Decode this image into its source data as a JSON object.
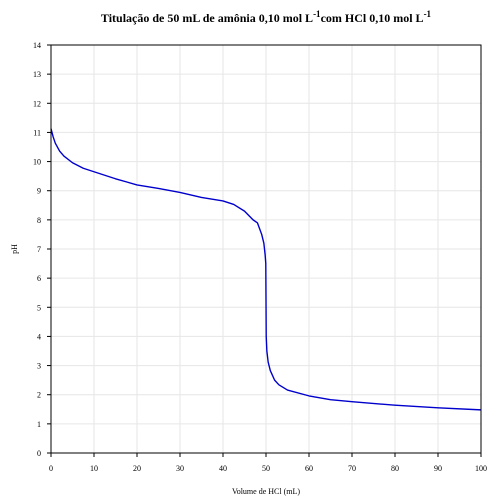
{
  "chart_data": {
    "type": "line",
    "title": {
      "main": "Titulação de 50 mL de amônia 0,10 mol L",
      "sup1": "-1",
      "middle": "com HCl 0,10 mol L",
      "sup2": "-1"
    },
    "xlabel": "Volume de HCl (mL)",
    "ylabel": "pH",
    "xlim": [
      0,
      100
    ],
    "ylim": [
      0,
      14
    ],
    "xticks": [
      "0",
      "10",
      "20",
      "30",
      "40",
      "50",
      "60",
      "70",
      "80",
      "90",
      "100"
    ],
    "yticks": [
      "0",
      "1",
      "2",
      "3",
      "4",
      "5",
      "6",
      "7",
      "8",
      "9",
      "10",
      "11",
      "12",
      "13",
      "14"
    ],
    "grid": true,
    "line_color": "#0000cc",
    "series": [
      {
        "x": [
          0,
          0.5,
          1,
          2,
          3,
          5,
          7.5,
          10,
          15,
          20,
          25,
          30,
          35,
          40,
          42.5,
          45,
          47,
          48,
          49,
          49.5,
          49.8,
          49.95,
          50,
          50.05,
          50.2,
          50.5,
          51,
          52,
          53,
          55,
          60,
          65,
          70,
          80,
          90,
          100
        ],
        "y": [
          11.13,
          10.85,
          10.63,
          10.36,
          10.19,
          9.96,
          9.77,
          9.65,
          9.41,
          9.2,
          9.08,
          8.94,
          8.77,
          8.65,
          8.53,
          8.3,
          8.0,
          7.9,
          7.5,
          7.2,
          6.8,
          6.5,
          5.28,
          4.0,
          3.5,
          3.12,
          2.83,
          2.5,
          2.34,
          2.16,
          1.96,
          1.83,
          1.76,
          1.64,
          1.55,
          1.48
        ]
      }
    ]
  }
}
